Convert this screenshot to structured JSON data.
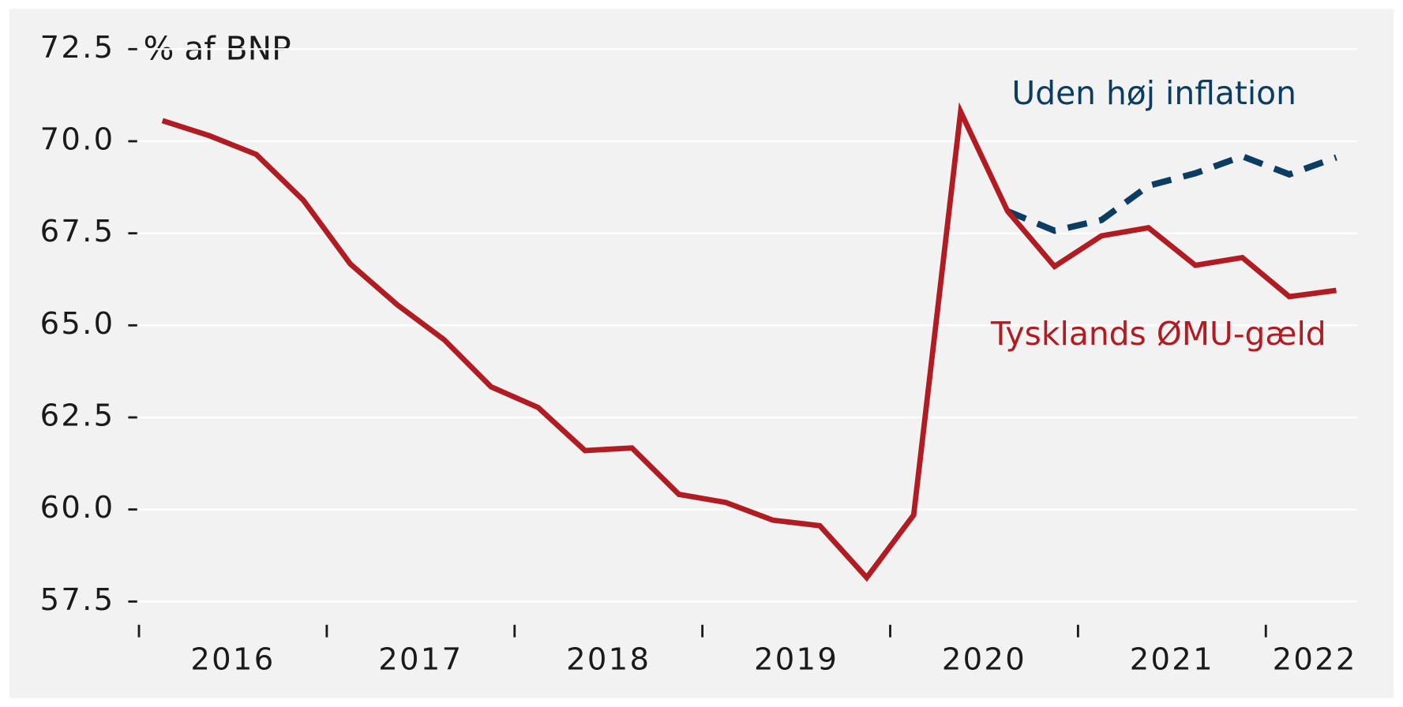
{
  "chart_data": {
    "type": "line",
    "y_label": "% af BNP",
    "x": [
      2016.125,
      2016.375,
      2016.625,
      2016.875,
      2017.125,
      2017.375,
      2017.625,
      2017.875,
      2018.125,
      2018.375,
      2018.625,
      2018.875,
      2019.125,
      2019.375,
      2019.625,
      2019.875,
      2020.125,
      2020.375,
      2020.625,
      2020.875,
      2021.125,
      2021.375,
      2021.625,
      2021.875,
      2022.125,
      2022.375
    ],
    "series": [
      {
        "name": "Tysklands ØMU-gæld",
        "color": "#b01c22",
        "dash": false,
        "values": [
          70.56,
          70.15,
          69.64,
          68.4,
          66.67,
          65.56,
          64.61,
          63.33,
          62.77,
          61.6,
          61.67,
          60.41,
          60.19,
          59.71,
          59.56,
          58.15,
          59.85,
          70.8,
          68.1,
          66.6,
          67.43,
          67.65,
          66.63,
          66.84,
          65.78,
          65.95
        ]
      },
      {
        "name": "Uden høj inflation",
        "color": "#0b3c61",
        "dash": true,
        "values": [
          null,
          null,
          null,
          null,
          null,
          null,
          null,
          null,
          null,
          null,
          null,
          null,
          null,
          null,
          null,
          null,
          null,
          null,
          68.1,
          67.57,
          67.86,
          68.79,
          69.13,
          69.59,
          69.1,
          69.56
        ]
      }
    ],
    "xlim": [
      2016,
      2022.5
    ],
    "xticks": [
      2016,
      2017,
      2018,
      2019,
      2020,
      2021,
      2022
    ],
    "x_labels": [
      {
        "value": 2016.5,
        "label": "2016"
      },
      {
        "value": 2017.5,
        "label": "2017"
      },
      {
        "value": 2018.5,
        "label": "2018"
      },
      {
        "value": 2019.5,
        "label": "2019"
      },
      {
        "value": 2020.5,
        "label": "2020"
      },
      {
        "value": 2021.5,
        "label": "2021"
      },
      {
        "value": 2022.26,
        "label": "2022"
      }
    ],
    "ylim": [
      57.5,
      72.5
    ],
    "yticks": [
      {
        "value": 57.5,
        "label": "57.5"
      },
      {
        "value": 60,
        "label": "60.0"
      },
      {
        "value": 62.5,
        "label": "62.5"
      },
      {
        "value": 65,
        "label": "65.0"
      },
      {
        "value": 67.5,
        "label": "67.5"
      },
      {
        "value": 70,
        "label": "70.0"
      },
      {
        "value": 72.5,
        "label": "72.5"
      }
    ],
    "grid": true
  }
}
